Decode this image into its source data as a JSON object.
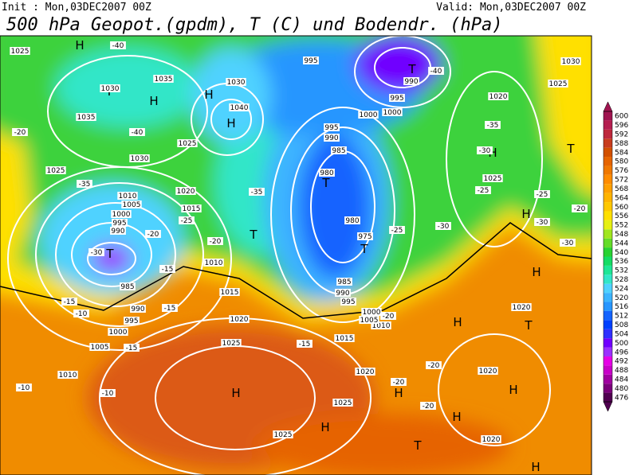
{
  "header": {
    "init": "Init : Mon,03DEC2007 00Z",
    "valid": "Valid: Mon,03DEC2007 00Z",
    "title": "500 hPa Geopot.(gpdm), T (C) und Bodendr. (hPa)"
  },
  "colorbar": {
    "ticks": [
      476,
      480,
      484,
      488,
      492,
      496,
      500,
      504,
      508,
      512,
      516,
      520,
      524,
      528,
      532,
      536,
      540,
      544,
      548,
      552,
      556,
      560,
      564,
      568,
      572,
      576,
      580,
      584,
      588,
      592,
      596,
      600
    ],
    "colors": [
      "#500050",
      "#7a007a",
      "#a000a0",
      "#c800c8",
      "#e600e6",
      "#9b30ff",
      "#7000ff",
      "#3030ff",
      "#0040ff",
      "#1464ff",
      "#2896ff",
      "#3cb4ff",
      "#50d2ff",
      "#32e6c8",
      "#1ee696",
      "#14dc64",
      "#28d232",
      "#64dc28",
      "#a0e61e",
      "#e6f014",
      "#ffe000",
      "#ffc800",
      "#ffb400",
      "#ffa000",
      "#ff8c00",
      "#f07800",
      "#e66400",
      "#d25000",
      "#c83c1e",
      "#be283c",
      "#b41e50",
      "#a01450"
    ]
  },
  "map": {
    "systems": [
      "H",
      "H",
      "H",
      "H",
      "H",
      "H",
      "H",
      "H",
      "H",
      "H",
      "H",
      "H",
      "H",
      "H",
      "T",
      "T",
      "T",
      "T",
      "T",
      "T",
      "T",
      "T",
      "T"
    ],
    "isobars": [
      "1025",
      "1035",
      "1030",
      "1035",
      "1030",
      "1040",
      "1025",
      "1030",
      "1025",
      "1020",
      "1015",
      "1010",
      "1005",
      "1000",
      "995",
      "990",
      "985",
      "990",
      "995",
      "1000",
      "1005",
      "1010",
      "1010",
      "1015",
      "1020",
      "1025",
      "1015",
      "1010",
      "1005",
      "1000",
      "995",
      "990",
      "985",
      "980",
      "985",
      "990",
      "995",
      "1000",
      "1000",
      "995",
      "990",
      "995",
      "1020",
      "1025",
      "1030",
      "1025",
      "975",
      "980",
      "1020",
      "1025",
      "1025",
      "1020",
      "1020",
      "1020"
    ],
    "temperatures": [
      "-40",
      "-40",
      "-40",
      "-35",
      "-35",
      "-30",
      "-25",
      "-20",
      "-20",
      "-20",
      "-15",
      "-15",
      "-10",
      "-15",
      "-10",
      "-10",
      "-15",
      "-15",
      "-20",
      "-25",
      "-30",
      "-35",
      "-30",
      "-25",
      "-25",
      "-30",
      "-20",
      "-30",
      "-20",
      "-20",
      "-20"
    ]
  }
}
